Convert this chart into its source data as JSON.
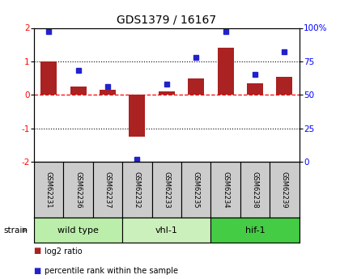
{
  "title": "GDS1379 / 16167",
  "samples": [
    "GSM62231",
    "GSM62236",
    "GSM62237",
    "GSM62232",
    "GSM62233",
    "GSM62235",
    "GSM62234",
    "GSM62238",
    "GSM62239"
  ],
  "log2_ratio": [
    1.0,
    0.25,
    0.15,
    -1.25,
    0.1,
    0.5,
    1.4,
    0.35,
    0.55
  ],
  "percentile": [
    97,
    68,
    56,
    2,
    58,
    78,
    97,
    65,
    82
  ],
  "groups": [
    {
      "label": "wild type",
      "start": 0,
      "end": 3,
      "color": "#bbeeaa"
    },
    {
      "label": "vhl-1",
      "start": 3,
      "end": 6,
      "color": "#ccf0bb"
    },
    {
      "label": "hif-1",
      "start": 6,
      "end": 9,
      "color": "#44cc44"
    }
  ],
  "ylim_left": [
    -2,
    2
  ],
  "bar_color": "#aa2222",
  "dot_color": "#2222cc",
  "bg_color": "#ffffff",
  "sample_box_color": "#cccccc",
  "left_tick_vals": [
    -2,
    -1,
    0,
    1,
    2
  ],
  "left_tick_labels": [
    "-2",
    "-1",
    "0",
    "1",
    "2"
  ],
  "right_tick_vals": [
    0,
    25,
    50,
    75,
    100
  ],
  "right_tick_labels": [
    "0",
    "25",
    "50",
    "75",
    "100%"
  ]
}
